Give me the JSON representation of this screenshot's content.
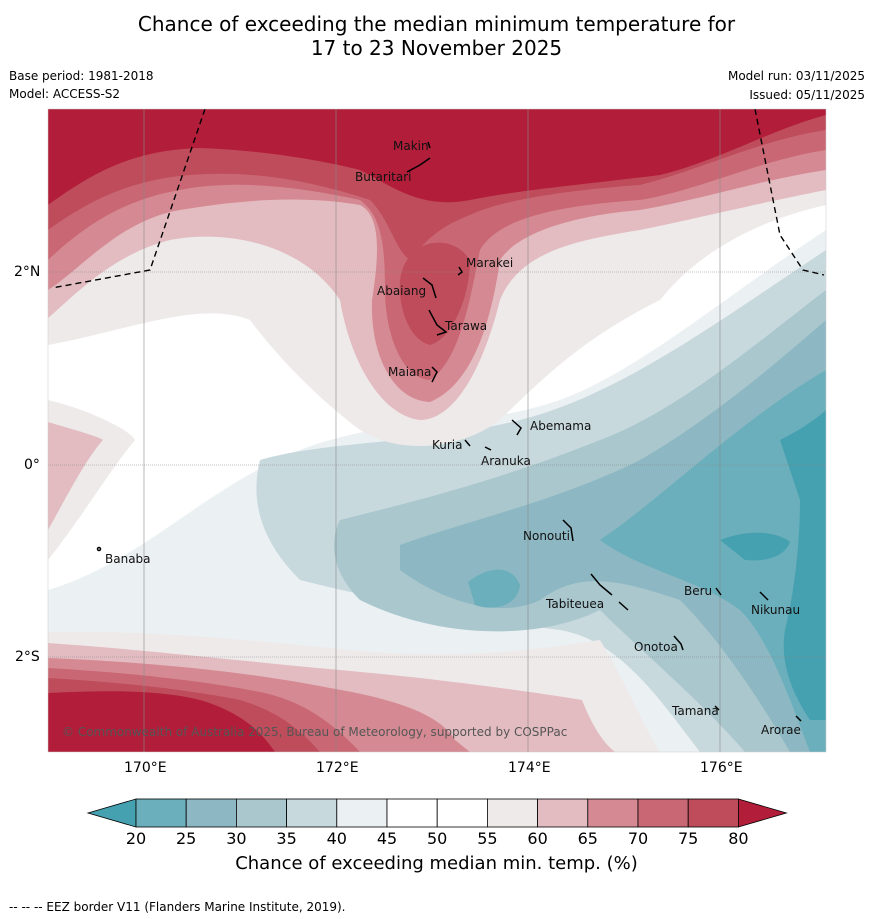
{
  "title_line1": "Chance of exceeding the median minimum temperature for",
  "title_line2": "17 to 23 November 2025",
  "base_period": "Base period: 1981-2018",
  "model": "Model: ACCESS-S2",
  "model_run": "Model run: 03/11/2025",
  "issued": "Issued: 05/11/2025",
  "lat_labels": [
    "2°N",
    "0°",
    "2°S"
  ],
  "lon_labels": [
    "170°E",
    "172°E",
    "174°E",
    "176°E"
  ],
  "places": [
    "Makin",
    "Butaritari",
    "Marakei",
    "Abaiang",
    "Tarawa",
    "Maiana",
    "Abemama",
    "Kuria",
    "Aranuka",
    "Nonouti",
    "Banaba",
    "Beru",
    "Tabiteuea",
    "Nikunau",
    "Onotoa",
    "Tamana",
    "Arorae"
  ],
  "copyright": "© Commonwealth of Australia 2025, Bureau of Meteorology, supported by COSPPac",
  "colorbar": {
    "ticks": [
      "20",
      "25",
      "30",
      "35",
      "40",
      "45",
      "50",
      "55",
      "60",
      "65",
      "70",
      "75",
      "80"
    ],
    "colors": [
      "#45a0b0",
      "#6aafbb",
      "#8db8c3",
      "#a9c7cd",
      "#c8d9de",
      "#ebf0f3",
      "#ffffff",
      "#ffffff",
      "#eeeaea",
      "#e3bcc1",
      "#d58a93",
      "#c96874",
      "#bf4c5b",
      "#b21e3a"
    ],
    "title": "Chance of exceeding median min. temp. (%)"
  },
  "footer": "--  --  -- EEZ border V11 (Flanders Marine Institute, 2019)."
}
